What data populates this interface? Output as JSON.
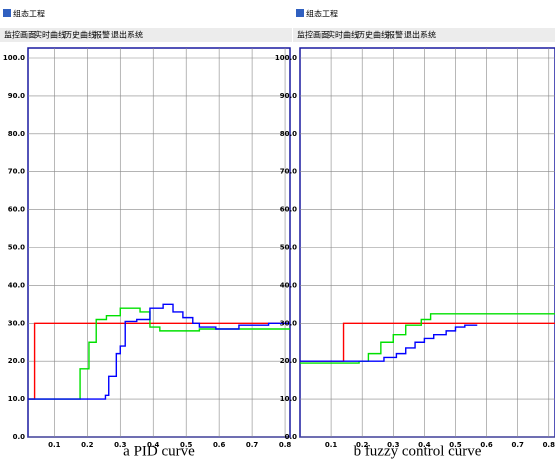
{
  "chart_data": [
    {
      "type": "line",
      "window_title": "组态工程",
      "menu": [
        "监控画面",
        "实时曲线",
        "历史曲线",
        "报警",
        "退出系统"
      ],
      "caption": "a PID curve",
      "xlim": [
        0.02,
        0.815
      ],
      "xticks": [
        0.1,
        0.2,
        0.3,
        0.4,
        0.5,
        0.6,
        0.7,
        0.8
      ],
      "ylim": [
        0,
        100
      ],
      "yticks": [
        {
          "value": 0,
          "label": "0.0"
        },
        {
          "value": 10,
          "label": "10.0"
        },
        {
          "value": 20,
          "label": "20.0"
        },
        {
          "value": 30,
          "label": "30.0"
        },
        {
          "value": 40,
          "label": "40.0"
        },
        {
          "value": 50,
          "label": "50.0"
        },
        {
          "value": 60,
          "label": "60.0"
        },
        {
          "value": 70,
          "label": "70.0"
        },
        {
          "value": 80,
          "label": "80.0"
        },
        {
          "value": 90,
          "label": "90.0"
        },
        {
          "value": 100,
          "label": "100.0"
        }
      ],
      "grid": true,
      "series": [
        {
          "color": "#ff0000",
          "x": [
            0.02,
            0.04,
            0.04,
            0.815
          ],
          "values": [
            10,
            10,
            30,
            30
          ]
        },
        {
          "color": "#00e000",
          "x": [
            0.02,
            0.178,
            0.178,
            0.205,
            0.205,
            0.227,
            0.227,
            0.258,
            0.258,
            0.3,
            0.3,
            0.36,
            0.36,
            0.39,
            0.39,
            0.42,
            0.42,
            0.54,
            0.54,
            0.815
          ],
          "values": [
            10,
            10,
            18,
            18,
            25,
            25,
            31,
            31,
            32,
            32,
            34,
            34,
            33,
            33,
            29,
            29,
            28,
            28,
            28.5,
            28.5
          ]
        },
        {
          "color": "#0000ff",
          "x": [
            0.02,
            0.255,
            0.255,
            0.265,
            0.265,
            0.288,
            0.288,
            0.3,
            0.3,
            0.315,
            0.315,
            0.35,
            0.35,
            0.39,
            0.39,
            0.43,
            0.43,
            0.46,
            0.46,
            0.49,
            0.49,
            0.52,
            0.52,
            0.54,
            0.54,
            0.59,
            0.59,
            0.66,
            0.66,
            0.75,
            0.75,
            0.815
          ],
          "values": [
            10,
            10,
            11,
            11,
            16,
            16,
            22,
            22,
            24,
            24,
            30.5,
            30.5,
            31,
            31,
            34,
            34,
            35,
            35,
            33,
            33,
            31.5,
            31.5,
            30,
            30,
            29,
            29,
            28.5,
            28.5,
            29.5,
            29.5,
            30,
            30
          ]
        }
      ]
    },
    {
      "type": "line",
      "window_title": "组态工程",
      "menu": [
        "监控画面",
        "实时曲线",
        "历史曲线",
        "报警",
        "退出系统"
      ],
      "caption": "b fuzzy control curve",
      "xlim": [
        0,
        0.82
      ],
      "xticks": [
        0.1,
        0.2,
        0.3,
        0.4,
        0.5,
        0.6,
        0.7,
        0.8
      ],
      "ylim": [
        0,
        100
      ],
      "yticks": [
        {
          "value": 0,
          "label": "0.0"
        },
        {
          "value": 10,
          "label": "10.0"
        },
        {
          "value": 20,
          "label": "20.0"
        },
        {
          "value": 30,
          "label": "30.0"
        },
        {
          "value": 40,
          "label": "40.0"
        },
        {
          "value": 50,
          "label": "50.0"
        },
        {
          "value": 60,
          "label": "60.0"
        },
        {
          "value": 70,
          "label": "70.0"
        },
        {
          "value": 80,
          "label": "80.0"
        },
        {
          "value": 90,
          "label": "90.0"
        },
        {
          "value": 100,
          "label": "100.0"
        }
      ],
      "grid": true,
      "series": [
        {
          "color": "#ff0000",
          "x": [
            0,
            0.14,
            0.14,
            0.82
          ],
          "values": [
            20,
            20,
            30,
            30
          ]
        },
        {
          "color": "#00e000",
          "x": [
            0,
            0.19,
            0.19,
            0.22,
            0.22,
            0.26,
            0.26,
            0.3,
            0.3,
            0.34,
            0.34,
            0.39,
            0.39,
            0.42,
            0.42,
            0.82
          ],
          "values": [
            19.5,
            19.5,
            20,
            20,
            22,
            22,
            25,
            25,
            27,
            27,
            29.5,
            29.5,
            31,
            31,
            32.5,
            32.5
          ]
        },
        {
          "color": "#0000ff",
          "x": [
            0,
            0.27,
            0.27,
            0.31,
            0.31,
            0.34,
            0.34,
            0.37,
            0.37,
            0.4,
            0.4,
            0.43,
            0.43,
            0.47,
            0.47,
            0.5,
            0.5,
            0.53,
            0.53,
            0.57
          ],
          "values": [
            20,
            20,
            21,
            21,
            22,
            22,
            23.5,
            23.5,
            25,
            25,
            26,
            26,
            27,
            27,
            28,
            28,
            29,
            29,
            29.5,
            29.5
          ]
        }
      ]
    }
  ]
}
